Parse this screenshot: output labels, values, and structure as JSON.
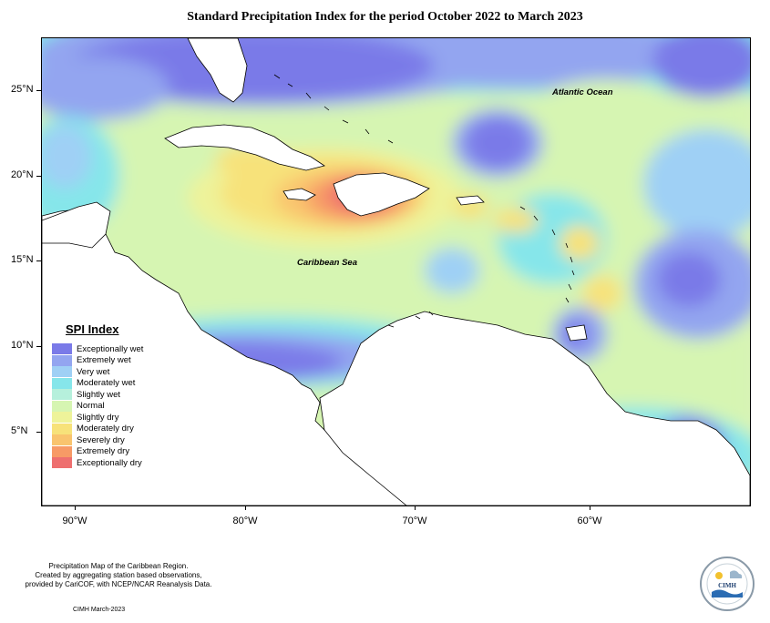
{
  "title": "Standard Precipitation Index for the period October 2022 to March 2023",
  "map": {
    "labels": {
      "atlantic": "Atlantic Ocean",
      "caribbean": "Caribbean Sea"
    },
    "lat_ticks": [
      "25°N",
      "20°N",
      "15°N",
      "10°N",
      "5°N"
    ],
    "lon_ticks": [
      "90°W",
      "80°W",
      "70°W",
      "60°W"
    ]
  },
  "legend": {
    "title": "SPI Index",
    "items": [
      {
        "label": "Exceptionally wet",
        "color": "#7a7ae8"
      },
      {
        "label": "Extremely wet",
        "color": "#93a5f0"
      },
      {
        "label": "Very wet",
        "color": "#9fd0f5"
      },
      {
        "label": "Moderately wet",
        "color": "#86e6ea"
      },
      {
        "label": "Slightly wet",
        "color": "#b6f0dc"
      },
      {
        "label": "Normal",
        "color": "#d6f5b2"
      },
      {
        "label": "Slightly dry",
        "color": "#eef39a"
      },
      {
        "label": "Moderately dry",
        "color": "#f7e27a"
      },
      {
        "label": "Severely dry",
        "color": "#f9c46e"
      },
      {
        "label": "Extremely dry",
        "color": "#f79a66"
      },
      {
        "label": "Exceptionally dry",
        "color": "#ee6f6f"
      }
    ]
  },
  "footer": {
    "line1": "Precipitation Map of the Caribbean Region.",
    "line2": "Created by aggregating station based observations,",
    "line3": "provided by CariCOF, with NCEP/NCAR Reanalysis Data.",
    "credit": "CIMH March-2023",
    "logo_text": "CIMH"
  }
}
